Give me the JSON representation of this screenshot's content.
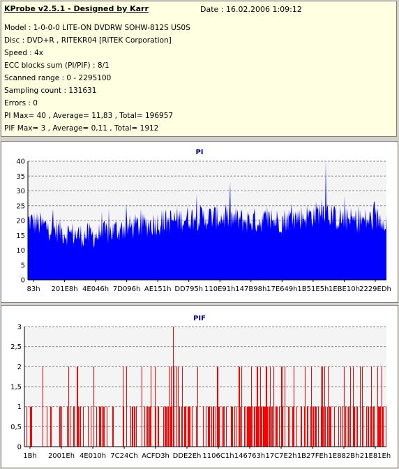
{
  "info": {
    "title": "KProbe v2.5.1 - Designed by Karr",
    "date": "Date : 16.02.2006 1:09:12",
    "lines": [
      "Model : 1-0-0-0 LITE-ON DVDRW SOHW-812S  US0S",
      "Disc : DVD+R , RITEKR04 [RiTEK Corporation]",
      "Speed : 4x",
      "ECC blocks sum (PI/PIF) : 8/1",
      "Scanned range : 0 - 2295100",
      "Sampling count : 131631",
      "Errors : 0",
      "PI Max= 40 , Average= 11,83 , Total= 196957",
      "PIF Max= 3 , Average= 0,11 , Total= 1912"
    ]
  },
  "chart_data": [
    {
      "type": "area",
      "title": "PI",
      "color": "#0000ff",
      "ylim": [
        0,
        40
      ],
      "y_ticks": [
        "0",
        "5",
        "10",
        "15",
        "20",
        "25",
        "30",
        "35",
        "40"
      ],
      "x_ticks": [
        "83h",
        "201E8h",
        "4E046h",
        "7D096h",
        "AE151h",
        "DD795h",
        "110E91h",
        "147B98h",
        "17E649h",
        "1B51E5h",
        "1EBE10h",
        "2229EDh"
      ],
      "grid": true,
      "profile_x": [
        0,
        0.05,
        0.1,
        0.15,
        0.2,
        0.25,
        0.3,
        0.35,
        0.4,
        0.45,
        0.5,
        0.55,
        0.6,
        0.65,
        0.7,
        0.75,
        0.8,
        0.83,
        0.85,
        0.9,
        0.95,
        1.0
      ],
      "profile_y": [
        20,
        18,
        16,
        15,
        15,
        17,
        18,
        19,
        20,
        21,
        21,
        21,
        20,
        20,
        20,
        21,
        22,
        24,
        21,
        20,
        20,
        21
      ],
      "max": 40,
      "average": 11.83
    },
    {
      "type": "bar",
      "title": "PIF",
      "color": "#ff0000",
      "ylim": [
        0,
        3
      ],
      "y_ticks": [
        "0",
        "0,5",
        "1",
        "1,5",
        "2",
        "2,5",
        "3"
      ],
      "x_ticks": [
        "1Bh",
        "2001Eh",
        "4E010h",
        "7C24Ch",
        "ACFD3h",
        "DDE2Eh",
        "1106C1h",
        "146763h",
        "17C7E2h",
        "1B27FEh",
        "1E882Bh",
        "21E81Eh"
      ],
      "grid": true,
      "max": 3,
      "average": 0.11
    }
  ]
}
